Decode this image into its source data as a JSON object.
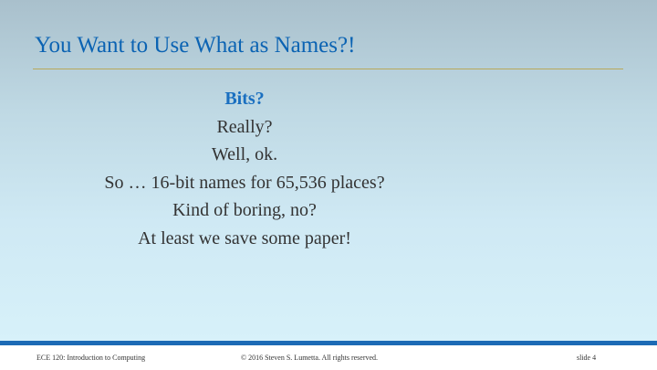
{
  "slide": {
    "title": "You Want to Use What as Names?!",
    "lines": [
      "Bits?",
      "Really?",
      "Well, ok.",
      "So … 16-bit names for 65,536 places?",
      "Kind of boring, no?",
      "At least we save some paper!"
    ]
  },
  "footer": {
    "course": "ECE 120: Introduction to Computing",
    "copyright": "© 2016 Steven S. Lumetta.  All rights reserved.",
    "slide_number": "slide 4"
  },
  "colors": {
    "title": "#0b63b3",
    "highlight": "#1a6fc0",
    "footer_bar": "#1c6ab5",
    "rule": "#b8a85a"
  }
}
